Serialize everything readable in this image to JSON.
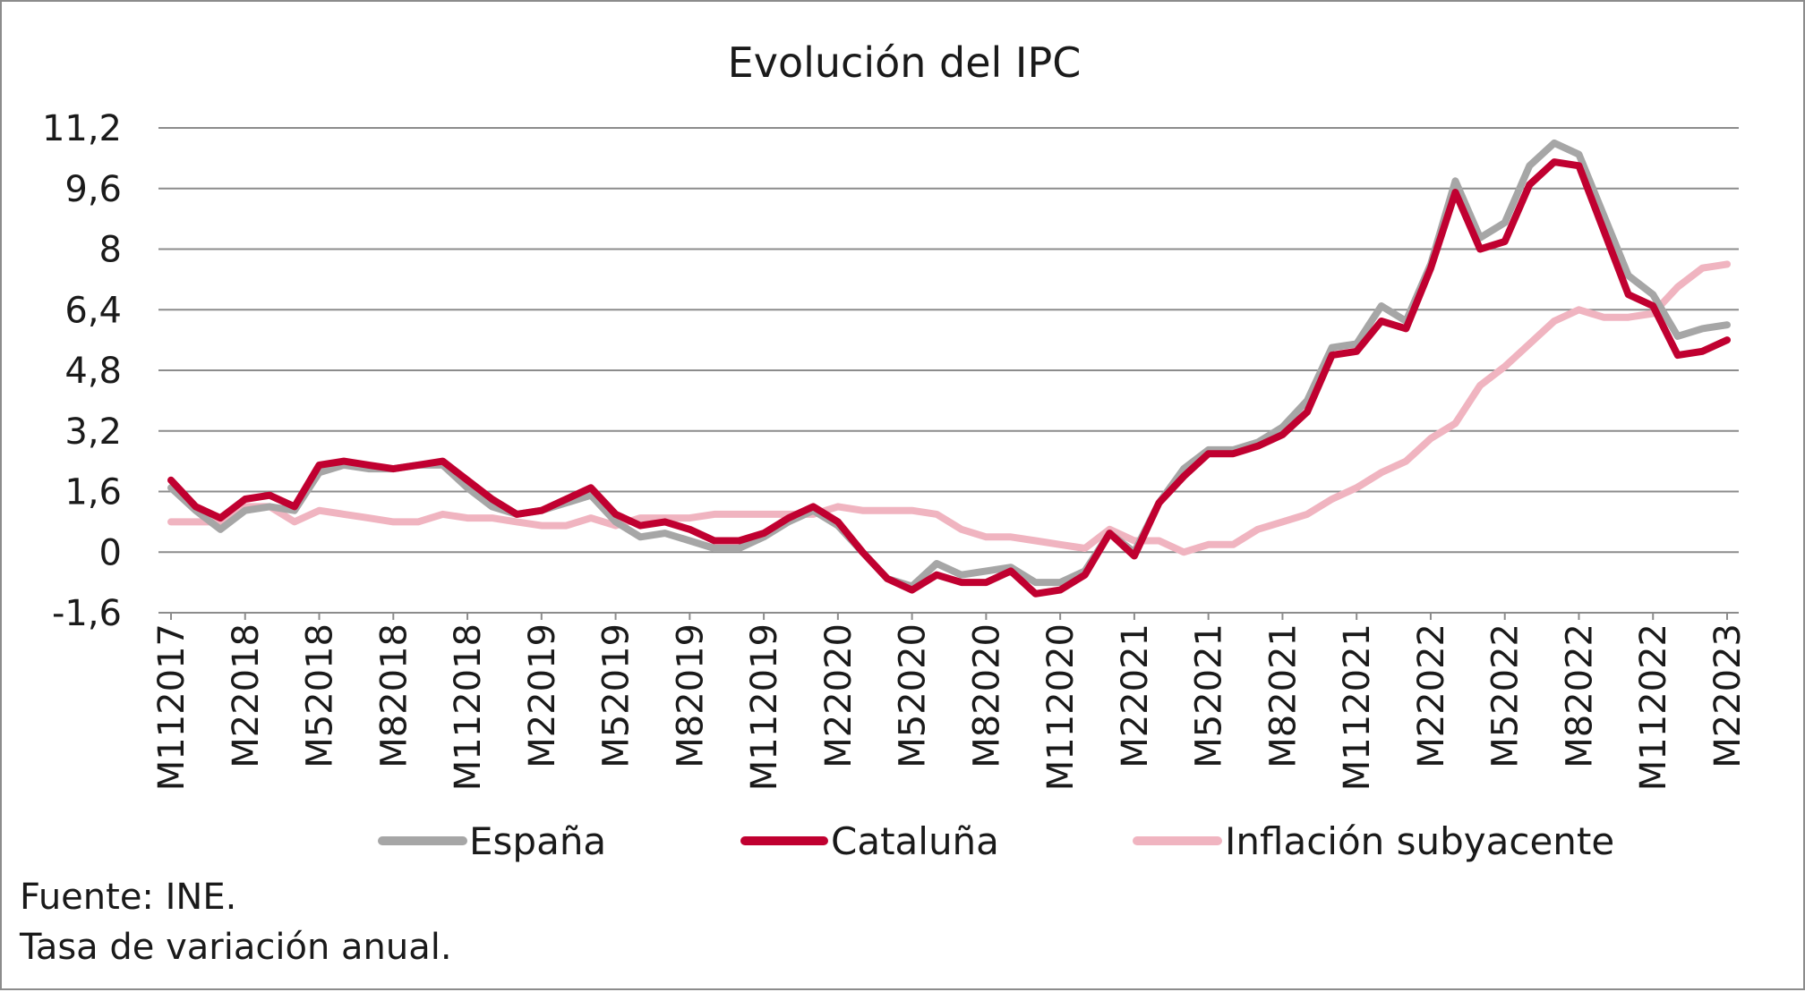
{
  "chart_data": {
    "type": "line",
    "title": "Evolución del IPC",
    "xlabel": "",
    "ylabel": "",
    "ylim": [
      -1.6,
      11.2
    ],
    "yticks": [
      "11,2",
      "9,6",
      "8",
      "6,4",
      "4,8",
      "3,2",
      "1,6",
      "0",
      "-1,6"
    ],
    "ytick_values": [
      11.2,
      9.6,
      8,
      6.4,
      4.8,
      3.2,
      1.6,
      0,
      -1.6
    ],
    "grid": true,
    "legend_position": "bottom",
    "x": [
      "M112017",
      "M122017",
      "M12018",
      "M22018",
      "M32018",
      "M42018",
      "M52018",
      "M62018",
      "M72018",
      "M82018",
      "M92018",
      "M102018",
      "M112018",
      "M122018",
      "M12019",
      "M22019",
      "M32019",
      "M42019",
      "M52019",
      "M62019",
      "M72019",
      "M82019",
      "M92019",
      "M102019",
      "M112019",
      "M122019",
      "M12020",
      "M22020",
      "M32020",
      "M42020",
      "M52020",
      "M62020",
      "M72020",
      "M82020",
      "M92020",
      "M102020",
      "M112020",
      "M122020",
      "M12021",
      "M22021",
      "M32021",
      "M42021",
      "M52021",
      "M62021",
      "M72021",
      "M82021",
      "M92021",
      "M102021",
      "M112021",
      "M122021",
      "M12022",
      "M22022",
      "M32022",
      "M42022",
      "M52022",
      "M62022",
      "M72022",
      "M82022",
      "M92022",
      "M102022",
      "M112022",
      "M122022",
      "M12023",
      "M22023"
    ],
    "xtick_labels": [
      "M112017",
      "M22018",
      "M52018",
      "M82018",
      "M112018",
      "M22019",
      "M52019",
      "M82019",
      "M112019",
      "M22020",
      "M52020",
      "M82020",
      "M112020",
      "M22021",
      "M52021",
      "M82021",
      "M112021",
      "M22022",
      "M52022",
      "M82022",
      "M112022",
      "M22023"
    ],
    "series": [
      {
        "name": "España",
        "color": "#a6a6a6",
        "values": [
          1.7,
          1.1,
          0.6,
          1.1,
          1.2,
          1.1,
          2.1,
          2.3,
          2.2,
          2.2,
          2.3,
          2.3,
          1.7,
          1.2,
          1.0,
          1.1,
          1.3,
          1.5,
          0.8,
          0.4,
          0.5,
          0.3,
          0.1,
          0.1,
          0.4,
          0.8,
          1.1,
          0.7,
          0.0,
          -0.7,
          -0.9,
          -0.3,
          -0.6,
          -0.5,
          -0.4,
          -0.8,
          -0.8,
          -0.5,
          0.5,
          0.0,
          1.3,
          2.2,
          2.7,
          2.7,
          2.9,
          3.3,
          4.0,
          5.4,
          5.5,
          6.5,
          6.1,
          7.6,
          9.8,
          8.3,
          8.7,
          10.2,
          10.8,
          10.5,
          8.9,
          7.3,
          6.8,
          5.7,
          5.9,
          6.0
        ]
      },
      {
        "name": "Cataluña",
        "color": "#c00030",
        "values": [
          1.9,
          1.2,
          0.9,
          1.4,
          1.5,
          1.2,
          2.3,
          2.4,
          2.3,
          2.2,
          2.3,
          2.4,
          1.9,
          1.4,
          1.0,
          1.1,
          1.4,
          1.7,
          1.0,
          0.7,
          0.8,
          0.6,
          0.3,
          0.3,
          0.5,
          0.9,
          1.2,
          0.8,
          0.0,
          -0.7,
          -1.0,
          -0.6,
          -0.8,
          -0.8,
          -0.5,
          -1.1,
          -1.0,
          -0.6,
          0.5,
          -0.1,
          1.3,
          2.0,
          2.6,
          2.6,
          2.8,
          3.1,
          3.7,
          5.2,
          5.3,
          6.1,
          5.9,
          7.5,
          9.5,
          8.0,
          8.2,
          9.7,
          10.3,
          10.2,
          8.5,
          6.8,
          6.5,
          5.2,
          5.3,
          5.6
        ]
      },
      {
        "name": "Inflación subyacente",
        "color": "#f0b4c0",
        "values": [
          0.8,
          0.8,
          0.8,
          1.2,
          1.2,
          0.8,
          1.1,
          1.0,
          0.9,
          0.8,
          0.8,
          1.0,
          0.9,
          0.9,
          0.8,
          0.7,
          0.7,
          0.9,
          0.7,
          0.9,
          0.9,
          0.9,
          1.0,
          1.0,
          1.0,
          1.0,
          1.0,
          1.2,
          1.1,
          1.1,
          1.1,
          1.0,
          0.6,
          0.4,
          0.4,
          0.3,
          0.2,
          0.1,
          0.6,
          0.3,
          0.3,
          0.0,
          0.2,
          0.2,
          0.6,
          0.8,
          1.0,
          1.4,
          1.7,
          2.1,
          2.4,
          3.0,
          3.4,
          4.4,
          4.9,
          5.5,
          6.1,
          6.4,
          6.2,
          6.2,
          6.3,
          7.0,
          7.5,
          7.6
        ]
      }
    ]
  },
  "notes": {
    "source": "Fuente: INE.",
    "description": "Tasa de variación anual."
  }
}
